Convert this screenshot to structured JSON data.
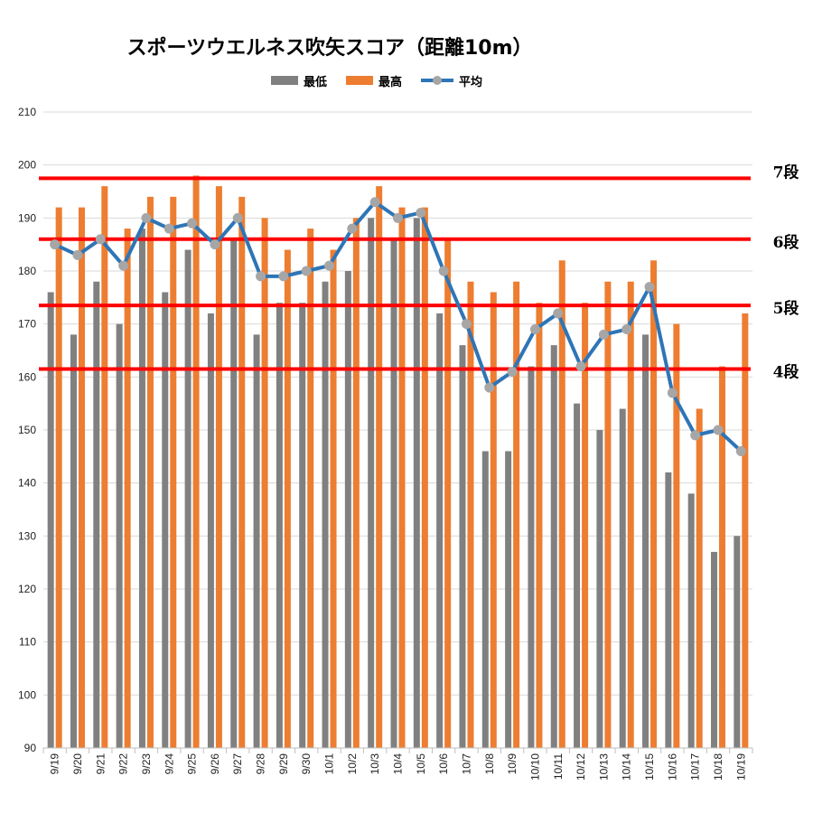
{
  "chart_data": {
    "type": "bar",
    "title": "スポーツウエルネス吹矢スコア（距離10m）",
    "xlabel": "",
    "ylabel": "",
    "ylim": [
      90,
      210
    ],
    "yticks": [
      90,
      100,
      110,
      120,
      130,
      140,
      150,
      160,
      170,
      180,
      190,
      200,
      210
    ],
    "grid": true,
    "legend_position": "top",
    "categories": [
      "9/19",
      "9/20",
      "9/21",
      "9/22",
      "9/23",
      "9/24",
      "9/25",
      "9/26",
      "9/27",
      "9/28",
      "9/29",
      "9/30",
      "10/1",
      "10/2",
      "10/3",
      "10/4",
      "10/5",
      "10/6",
      "10/7",
      "10/8",
      "10/9",
      "10/10",
      "10/11",
      "10/12",
      "10/13",
      "10/14",
      "10/15",
      "10/16",
      "10/17",
      "10/18",
      "10/19"
    ],
    "series": [
      {
        "name": "最低",
        "type": "bar",
        "color": "#808080",
        "values": [
          176,
          168,
          178,
          170,
          188,
          176,
          184,
          172,
          186,
          168,
          174,
          174,
          178,
          180,
          190,
          186,
          190,
          172,
          166,
          146,
          146,
          162,
          166,
          155,
          150,
          154,
          168,
          142,
          138,
          127,
          130
        ]
      },
      {
        "name": "最高",
        "type": "bar",
        "color": "#ED7D31",
        "values": [
          192,
          192,
          196,
          188,
          194,
          194,
          198,
          196,
          194,
          190,
          184,
          188,
          184,
          190,
          196,
          192,
          192,
          186,
          178,
          176,
          178,
          174,
          182,
          174,
          178,
          178,
          182,
          170,
          154,
          162,
          172
        ]
      },
      {
        "name": "平均",
        "type": "line",
        "color": "#2E75B6",
        "marker_color": "#A6A6A6",
        "values": [
          185,
          183,
          186,
          181,
          190,
          188,
          189,
          185,
          190,
          179,
          179,
          180,
          181,
          188,
          193,
          190,
          191,
          180,
          170,
          158,
          161,
          169,
          172,
          162,
          168,
          169,
          177,
          157,
          149,
          150,
          146
        ]
      }
    ],
    "reference_lines": [
      {
        "label": "7段",
        "value": 197.5,
        "color": "#FF0000"
      },
      {
        "label": "6段",
        "value": 186,
        "color": "#FF0000"
      },
      {
        "label": "5段",
        "value": 173.5,
        "color": "#FF0000"
      },
      {
        "label": "4段",
        "value": 161.5,
        "color": "#FF0000"
      }
    ]
  }
}
